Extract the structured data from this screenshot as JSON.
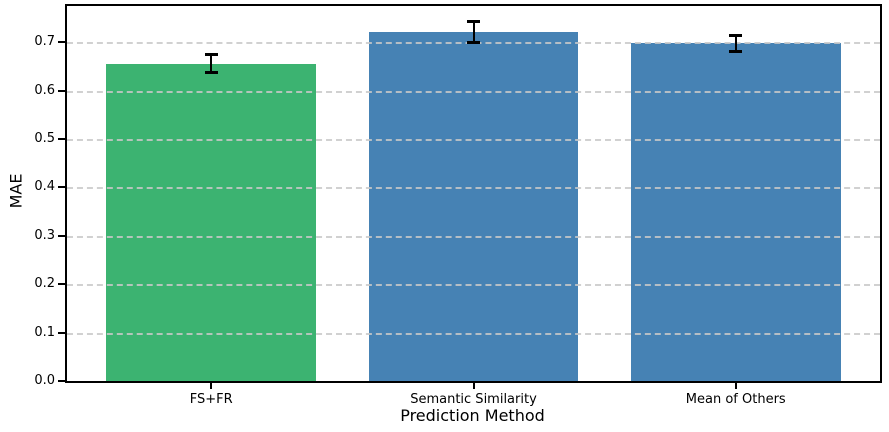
{
  "chart_data": {
    "type": "bar",
    "title": "",
    "xlabel": "Prediction Method",
    "ylabel": "MAE",
    "categories": [
      "FS+FR",
      "Semantic Similarity",
      "Mean of Others"
    ],
    "values": [
      0.656,
      0.721,
      0.698
    ],
    "error_bars": [
      0.018,
      0.022,
      0.016
    ],
    "bar_colors": [
      "#3cb371",
      "#4682b4",
      "#4682b4"
    ],
    "error_color": "#000000",
    "ylim": [
      0,
      0.775
    ],
    "yticks": [
      0.0,
      0.1,
      0.2,
      0.3,
      0.4,
      0.5,
      0.6,
      0.7
    ],
    "ytick_format_decimals": 1,
    "grid": {
      "axis": "y",
      "style": "dashed",
      "color": "#c9c9c9",
      "on": true
    },
    "legend": null,
    "bar_width_fraction": 0.8,
    "x_positions": [
      0,
      1,
      2
    ],
    "xlim": [
      -0.55,
      2.55
    ]
  }
}
